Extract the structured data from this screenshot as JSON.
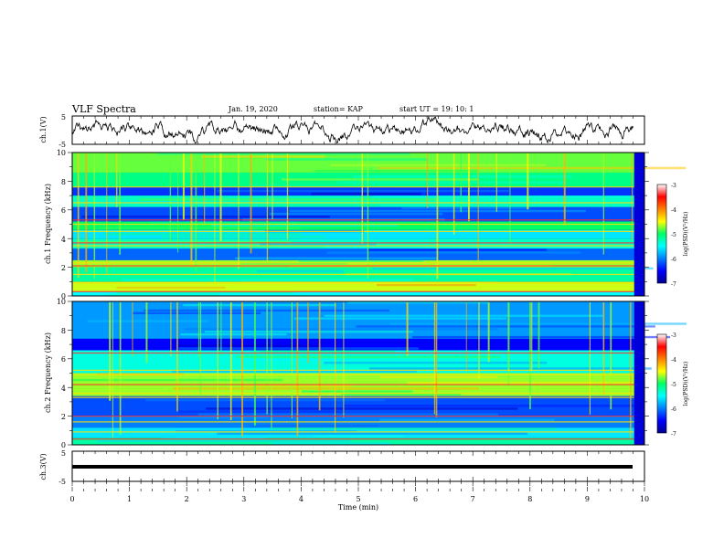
{
  "header": {
    "title": "VLF Spectra",
    "date": "Jan. 19, 2020",
    "station": "station= KAP",
    "start": "start UT = 19: 10: 1"
  },
  "chart_data": [
    {
      "type": "line",
      "panel": "ch1-waveform",
      "ylabel": "ch.1(V)",
      "ylim": [
        -5,
        5
      ],
      "yticks": [
        "5",
        "-5"
      ],
      "xlim": [
        0,
        10
      ],
      "series": [
        {
          "color": "#000000",
          "x_range": [
            0,
            9.8
          ],
          "level_approx": 0
        }
      ]
    },
    {
      "type": "heatmap",
      "panel": "ch1-spectrogram",
      "ylabel": "ch.1 Frequency (kHz)",
      "ylim": [
        0,
        10
      ],
      "yticks": [
        "0",
        "2",
        "4",
        "6",
        "8",
        "10"
      ],
      "xlim": [
        0,
        10
      ],
      "bands_khz": [
        {
          "from": 0.0,
          "to": 0.3,
          "level": -5.5
        },
        {
          "from": 0.3,
          "to": 1.0,
          "level": -4.6
        },
        {
          "from": 1.0,
          "to": 2.0,
          "level": -5.2
        },
        {
          "from": 2.0,
          "to": 2.5,
          "level": -4.7
        },
        {
          "from": 2.5,
          "to": 3.3,
          "level": -6.1
        },
        {
          "from": 3.3,
          "to": 4.0,
          "level": -5.3
        },
        {
          "from": 4.0,
          "to": 4.6,
          "level": -5.6
        },
        {
          "from": 4.6,
          "to": 5.2,
          "level": -5.0
        },
        {
          "from": 5.2,
          "to": 6.2,
          "level": -6.2
        },
        {
          "from": 6.2,
          "to": 7.0,
          "level": -5.3
        },
        {
          "from": 7.0,
          "to": 7.6,
          "level": -6.3
        },
        {
          "from": 7.6,
          "to": 8.6,
          "level": -5.1
        },
        {
          "from": 8.6,
          "to": 10.0,
          "level": -4.8
        }
      ],
      "lines_khz": [
        0.3,
        0.9,
        1.5,
        2.1,
        2.3,
        3.5,
        3.7,
        4.5,
        5.0,
        5.3,
        6.5,
        7.6
      ],
      "colorbar": {
        "label": "log(PSD)(V²/Hz)",
        "range": [
          -7,
          -3
        ],
        "ticks": [
          "-3",
          "-4",
          "-5",
          "-6",
          "-7"
        ]
      }
    },
    {
      "type": "heatmap",
      "panel": "ch2-spectrogram",
      "ylabel": "ch.2 Frequency (kHz)",
      "ylim": [
        0,
        10
      ],
      "yticks": [
        "0",
        "2",
        "4",
        "6",
        "8",
        "10"
      ],
      "xlim": [
        0,
        10
      ],
      "bands_khz": [
        {
          "from": 0.0,
          "to": 0.5,
          "level": -5.2
        },
        {
          "from": 0.5,
          "to": 1.2,
          "level": -5.6
        },
        {
          "from": 1.2,
          "to": 2.0,
          "level": -6.0
        },
        {
          "from": 2.0,
          "to": 3.4,
          "level": -6.2
        },
        {
          "from": 3.4,
          "to": 5.0,
          "level": -4.7
        },
        {
          "from": 5.0,
          "to": 6.6,
          "level": -5.4
        },
        {
          "from": 6.6,
          "to": 7.4,
          "level": -6.5
        },
        {
          "from": 7.4,
          "to": 10.0,
          "level": -5.9
        }
      ],
      "lines_khz": [
        0.4,
        0.9,
        1.6,
        2.0,
        3.3,
        3.6,
        4.2,
        4.9,
        5.2,
        6.4
      ],
      "colorbar": {
        "label": "log(PSD)(V²/Hz)",
        "range": [
          -7,
          -3
        ],
        "ticks": [
          "-3",
          "-4",
          "-5",
          "-6",
          "-7"
        ]
      }
    },
    {
      "type": "line",
      "panel": "ch3-waveform",
      "ylabel": "ch.3(V)",
      "ylim": [
        -5,
        5
      ],
      "yticks": [
        "5",
        "-5"
      ],
      "xlim": [
        0,
        10
      ],
      "series": [
        {
          "color": "#000000",
          "x_range": [
            0,
            9.8
          ],
          "value": 0
        }
      ]
    }
  ],
  "xaxis": {
    "label": "Time (min)",
    "ticks": [
      "0",
      "1",
      "2",
      "3",
      "4",
      "5",
      "6",
      "7",
      "8",
      "9",
      "10"
    ]
  }
}
